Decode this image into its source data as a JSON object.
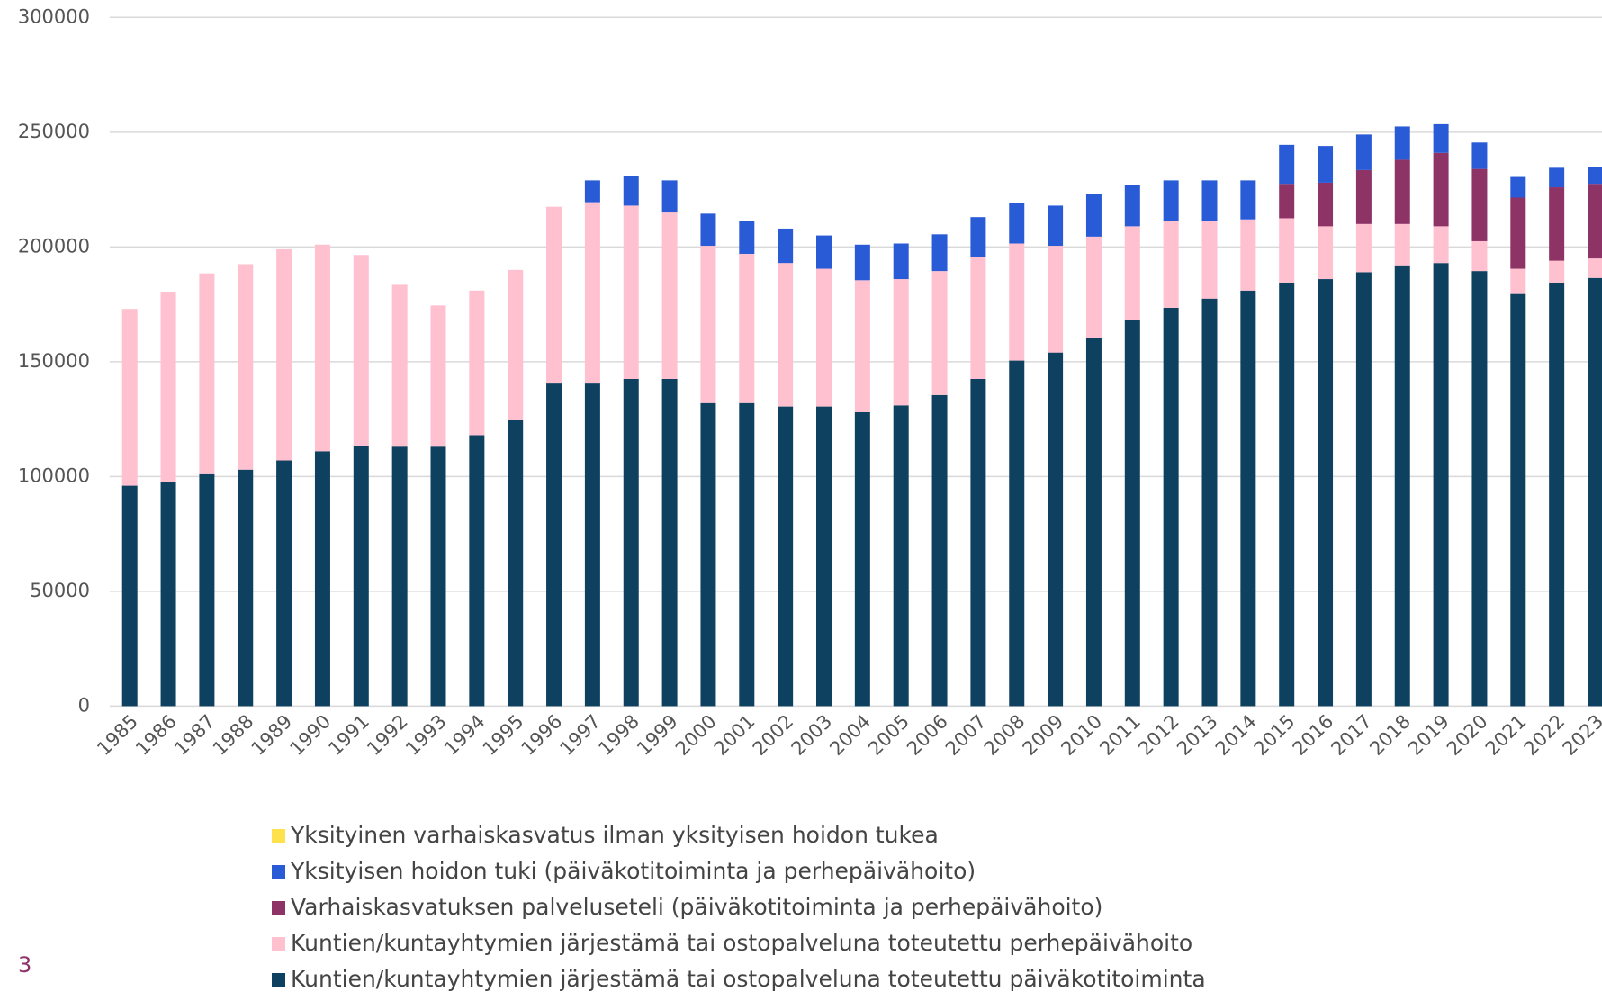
{
  "chart_data": {
    "type": "stacked_bar",
    "categories": [
      "1985",
      "1986",
      "1987",
      "1988",
      "1989",
      "1990",
      "1991",
      "1992",
      "1993",
      "1994",
      "1995",
      "1996",
      "1997",
      "1998",
      "1999",
      "2000",
      "2001",
      "2002",
      "2003",
      "2004",
      "2005",
      "2006",
      "2007",
      "2008",
      "2009",
      "2010",
      "2011",
      "2012",
      "2013",
      "2014",
      "2015",
      "2016",
      "2017",
      "2018",
      "2019",
      "2020",
      "2021",
      "2022",
      "2023"
    ],
    "series": [
      {
        "name": "Kuntien/kuntayhtymien järjestämä tai ostopalveluna toteutettu päiväkotitoiminta",
        "color": "#0e4160",
        "values": [
          96000,
          97500,
          101000,
          103000,
          107000,
          111000,
          113500,
          113000,
          113000,
          118000,
          124500,
          140500,
          140500,
          142500,
          142500,
          132000,
          132000,
          130500,
          130500,
          128000,
          131000,
          135500,
          142500,
          150500,
          154000,
          160500,
          168000,
          173500,
          177500,
          181000,
          184500,
          186000,
          189000,
          192000,
          193000,
          189500,
          179500,
          184500,
          186500
        ]
      },
      {
        "name": "Kuntien/kuntayhtymien järjestämä tai ostopalveluna toteutettu perhepäivähoito",
        "color": "#ffc0d0",
        "values": [
          77000,
          83000,
          87500,
          89500,
          92000,
          90000,
          83000,
          70500,
          61500,
          63000,
          65500,
          77000,
          79000,
          75500,
          72500,
          68500,
          65000,
          62500,
          60000,
          57500,
          55000,
          54000,
          53000,
          51000,
          46500,
          44000,
          41000,
          38000,
          34000,
          31000,
          28000,
          23000,
          21000,
          18000,
          16000,
          13000,
          11000,
          9500,
          8500
        ]
      },
      {
        "name": "Varhaiskasvatuksen palveluseteli (päiväkotitoiminta ja perhepäivähoito)",
        "color": "#8e3366",
        "values": [
          0,
          0,
          0,
          0,
          0,
          0,
          0,
          0,
          0,
          0,
          0,
          0,
          0,
          0,
          0,
          0,
          0,
          0,
          0,
          0,
          0,
          0,
          0,
          0,
          0,
          0,
          0,
          0,
          0,
          0,
          15000,
          19000,
          23500,
          28000,
          32000,
          31500,
          31000,
          32000,
          32500
        ]
      },
      {
        "name": "Yksityisen hoidon tuki (päiväkotitoiminta ja perhepäivähoito)",
        "color": "#2a5bd7",
        "values": [
          0,
          0,
          0,
          0,
          0,
          0,
          0,
          0,
          0,
          0,
          0,
          0,
          9500,
          13000,
          14000,
          14000,
          14500,
          15000,
          14500,
          15500,
          15500,
          16000,
          17500,
          17500,
          17500,
          18500,
          18000,
          17500,
          17500,
          17000,
          17000,
          16000,
          15500,
          14500,
          12500,
          11500,
          9000,
          8500,
          7500
        ]
      },
      {
        "name": "Yksityinen varhaiskasvatus ilman yksityisen hoidon tukea",
        "color": "#ffe14d",
        "values": [
          0,
          0,
          0,
          0,
          0,
          0,
          0,
          0,
          0,
          0,
          0,
          0,
          0,
          0,
          0,
          0,
          0,
          0,
          0,
          0,
          0,
          0,
          0,
          0,
          0,
          0,
          0,
          0,
          0,
          0,
          0,
          0,
          0,
          0,
          0,
          0,
          0,
          0,
          0
        ]
      }
    ],
    "ylim": [
      0,
      300000
    ],
    "yticks": [
      0,
      50000,
      100000,
      150000,
      200000,
      250000,
      300000
    ],
    "grid": true,
    "page_number": "3"
  }
}
